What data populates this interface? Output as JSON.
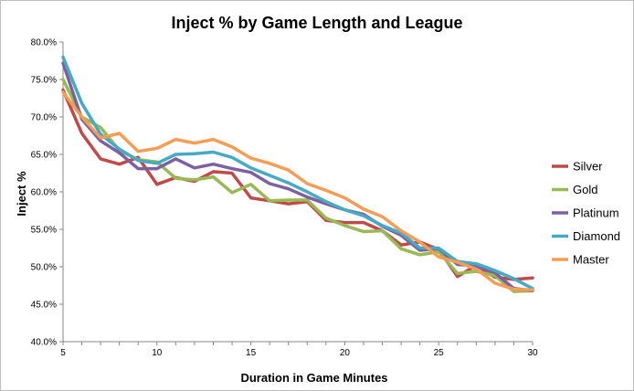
{
  "chart_data": {
    "type": "line",
    "title": "Inject % by Game Length and League",
    "xlabel": "Duration in Game Minutes",
    "ylabel": "Inject %",
    "xlim": [
      5,
      30
    ],
    "ylim": [
      0.4,
      0.8
    ],
    "x_ticks": [
      5,
      10,
      15,
      20,
      25,
      30
    ],
    "y_ticks": [
      "40.0%",
      "45.0%",
      "50.0%",
      "55.0%",
      "60.0%",
      "65.0%",
      "70.0%",
      "75.0%",
      "80.0%"
    ],
    "grid": false,
    "legend": "right",
    "x": [
      5,
      6,
      7,
      8,
      9,
      10,
      11,
      12,
      13,
      14,
      15,
      16,
      17,
      18,
      19,
      20,
      21,
      22,
      23,
      24,
      25,
      26,
      27,
      28,
      29,
      30
    ],
    "series": [
      {
        "name": "Silver",
        "color": "#BE4B48",
        "values": [
          0.736,
          0.678,
          0.644,
          0.637,
          0.646,
          0.61,
          0.619,
          0.614,
          0.627,
          0.625,
          0.592,
          0.588,
          0.584,
          0.587,
          0.562,
          0.559,
          0.559,
          0.548,
          0.529,
          0.533,
          0.523,
          0.487,
          0.502,
          0.486,
          0.483,
          0.485
        ]
      },
      {
        "name": "Gold",
        "color": "#98B954",
        "values": [
          0.75,
          0.7,
          0.686,
          0.655,
          0.643,
          0.64,
          0.618,
          0.616,
          0.62,
          0.599,
          0.61,
          0.588,
          0.589,
          0.589,
          0.565,
          0.555,
          0.547,
          0.548,
          0.524,
          0.516,
          0.52,
          0.491,
          0.494,
          0.488,
          0.467,
          0.468
        ]
      },
      {
        "name": "Platinum",
        "color": "#7D60A0",
        "values": [
          0.772,
          0.697,
          0.668,
          0.652,
          0.631,
          0.631,
          0.644,
          0.632,
          0.637,
          0.631,
          0.626,
          0.611,
          0.604,
          0.593,
          0.584,
          0.576,
          0.57,
          0.554,
          0.542,
          0.522,
          0.524,
          0.503,
          0.501,
          0.492,
          0.471,
          0.468
        ]
      },
      {
        "name": "Diamond",
        "color": "#46AAC5",
        "values": [
          0.78,
          0.718,
          0.677,
          0.657,
          0.642,
          0.638,
          0.65,
          0.651,
          0.653,
          0.646,
          0.632,
          0.622,
          0.612,
          0.6,
          0.587,
          0.576,
          0.568,
          0.555,
          0.545,
          0.525,
          0.525,
          0.507,
          0.504,
          0.495,
          0.484,
          0.471
        ]
      },
      {
        "name": "Master",
        "color": "#F59D56",
        "values": [
          0.733,
          0.7,
          0.672,
          0.678,
          0.654,
          0.658,
          0.67,
          0.665,
          0.67,
          0.66,
          0.645,
          0.638,
          0.629,
          0.611,
          0.602,
          0.592,
          0.577,
          0.567,
          0.548,
          0.533,
          0.513,
          0.506,
          0.497,
          0.478,
          0.47,
          0.469
        ]
      }
    ]
  }
}
